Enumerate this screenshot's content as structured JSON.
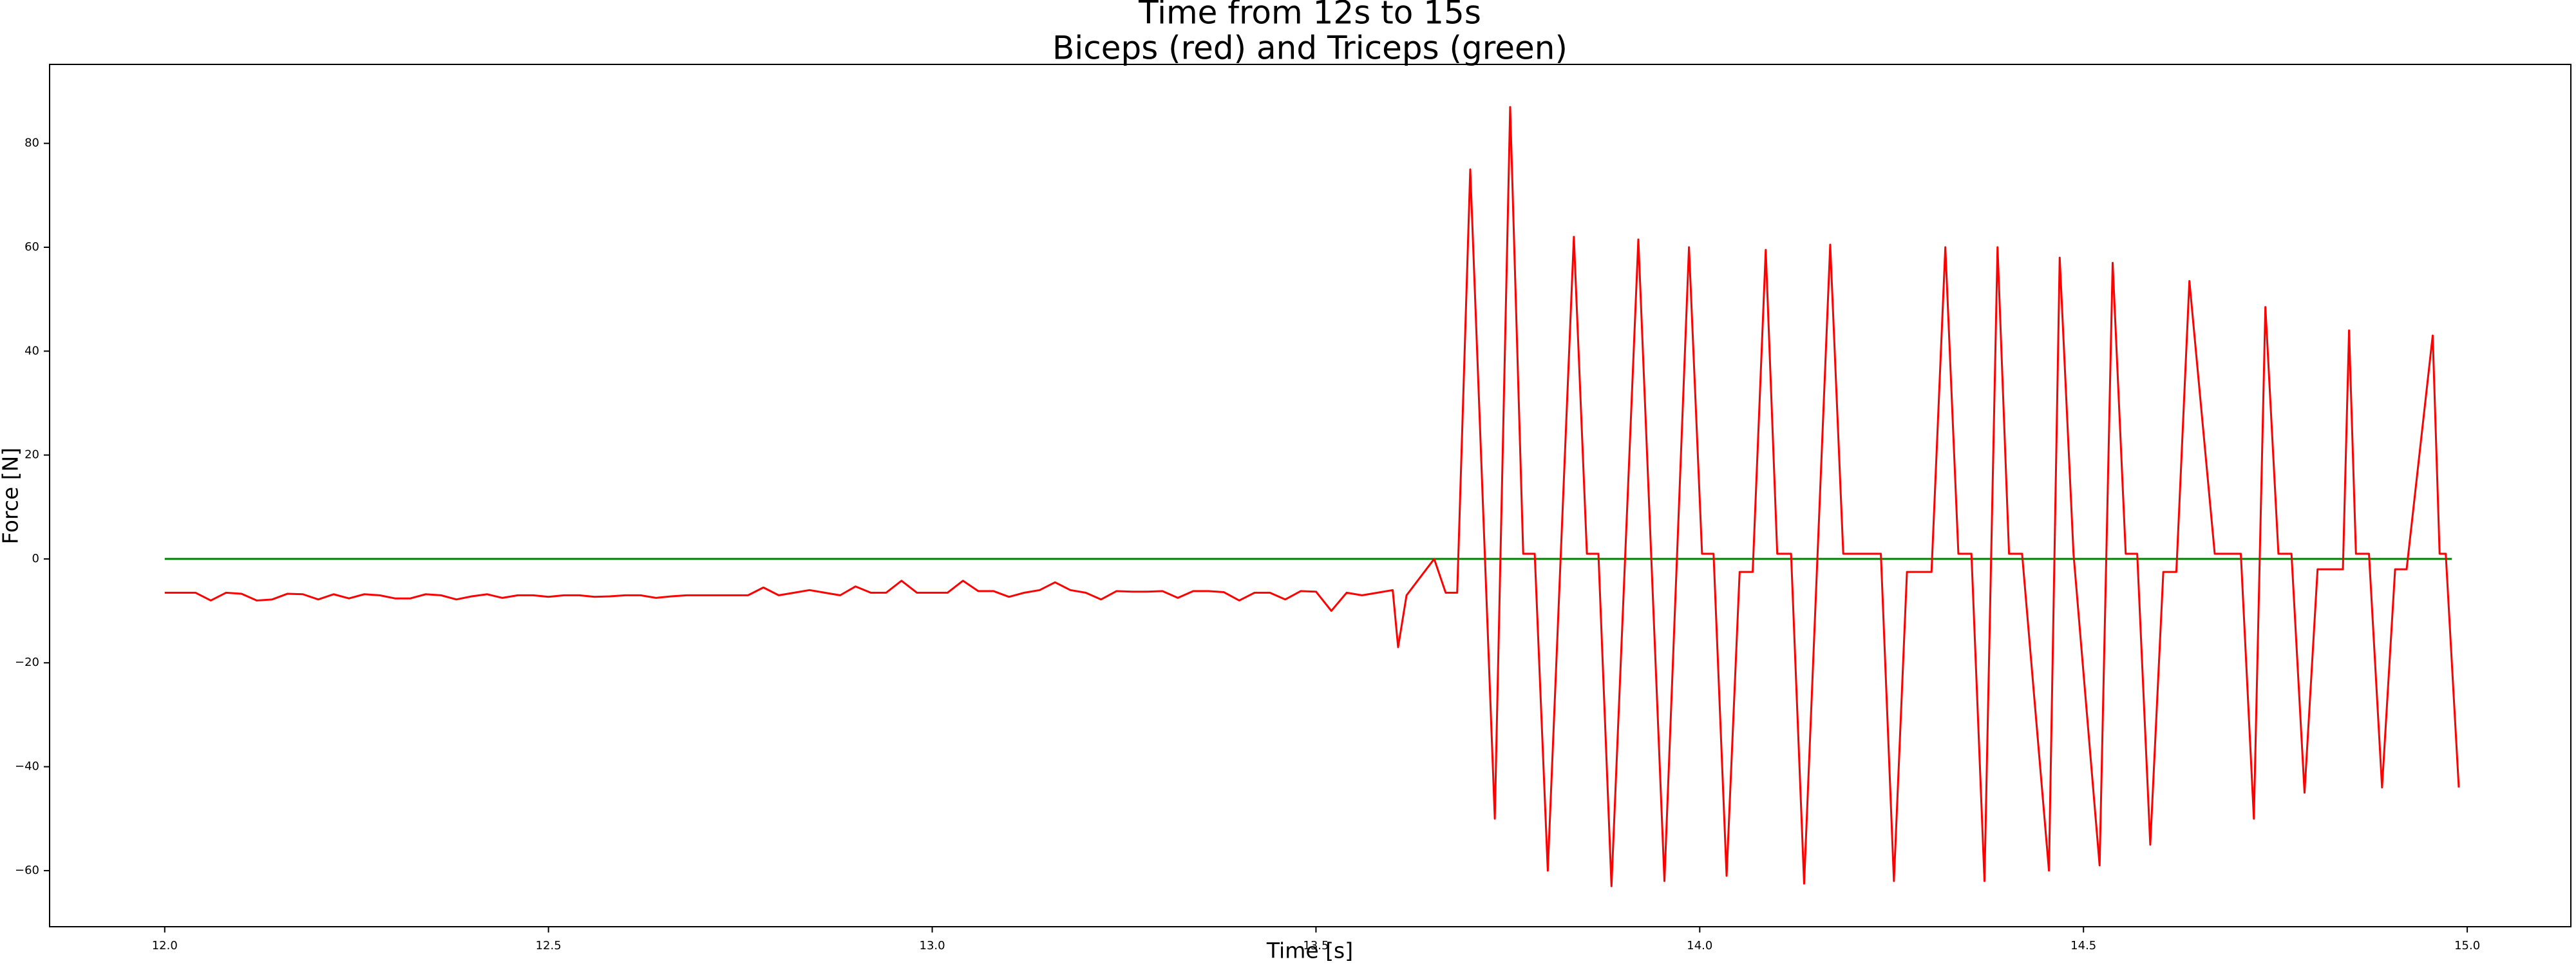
{
  "chart_data": {
    "type": "line",
    "title": "Time from 12s to 15s",
    "subtitle": "Biceps (red) and Triceps (green)",
    "x_label": "Time [s]",
    "y_label": "Force [N]",
    "xlim": [
      11.85,
      15.135
    ],
    "ylim": [
      -70.8,
      95.2
    ],
    "xticks": [
      {
        "value": 12,
        "label": "12.0"
      },
      {
        "value": 12.5,
        "label": "12.5"
      },
      {
        "value": 13,
        "label": "13.0"
      },
      {
        "value": 13.5,
        "label": "13.5"
      },
      {
        "value": 14,
        "label": "14.0"
      },
      {
        "value": 14.5,
        "label": "14.5"
      },
      {
        "value": 15,
        "label": "15.0"
      }
    ],
    "yticks": [
      {
        "value": -60,
        "label": "−60"
      },
      {
        "value": -40,
        "label": "−40"
      },
      {
        "value": -20,
        "label": "−20"
      },
      0,
      20,
      40,
      60,
      80
    ],
    "series": [
      {
        "color": "#008000",
        "x": [
          12.0,
          14.98
        ],
        "values": [
          0,
          0
        ]
      },
      {
        "color": "#ff0000",
        "x": [
          12.0,
          12.02,
          12.04,
          12.06,
          12.08,
          12.1,
          12.12,
          12.14,
          12.16,
          12.18,
          12.2,
          12.22,
          12.24,
          12.26,
          12.28,
          12.3,
          12.32,
          12.34,
          12.36,
          12.38,
          12.4,
          12.42,
          12.44,
          12.46,
          12.48,
          12.5,
          12.52,
          12.54,
          12.56,
          12.58,
          12.6,
          12.62,
          12.64,
          12.66,
          12.68,
          12.7,
          12.72,
          12.74,
          12.76,
          12.78,
          12.8,
          12.82,
          12.84,
          12.86,
          12.88,
          12.9,
          12.92,
          12.94,
          12.96,
          12.98,
          13.0,
          13.02,
          13.04,
          13.06,
          13.08,
          13.1,
          13.12,
          13.14,
          13.16,
          13.18,
          13.2,
          13.22,
          13.24,
          13.26,
          13.28,
          13.3,
          13.32,
          13.34,
          13.36,
          13.38,
          13.4,
          13.42,
          13.44,
          13.46,
          13.48,
          13.5,
          13.52,
          13.54,
          13.56,
          13.58,
          13.6,
          13.607,
          13.618,
          13.654,
          13.669,
          13.684,
          13.701,
          13.733,
          13.753,
          13.77,
          13.785,
          13.802,
          13.836,
          13.853,
          13.868,
          13.885,
          13.92,
          13.954,
          13.986,
          14.003,
          14.018,
          14.035,
          14.052,
          14.069,
          14.086,
          14.101,
          14.119,
          14.136,
          14.17,
          14.187,
          14.236,
          14.253,
          14.27,
          14.302,
          14.32,
          14.337,
          14.354,
          14.371,
          14.388,
          14.403,
          14.42,
          14.455,
          14.469,
          14.487,
          14.521,
          14.538,
          14.555,
          14.57,
          14.587,
          14.604,
          14.621,
          14.638,
          14.671,
          14.705,
          14.722,
          14.737,
          14.754,
          14.771,
          14.788,
          14.805,
          14.838,
          14.846,
          14.855,
          14.872,
          14.889,
          14.906,
          14.921,
          14.955,
          14.964,
          14.972,
          14.989
        ],
        "values": [
          -6.5,
          -6.5,
          -6.5,
          -8,
          -6.5,
          -6.7,
          -8,
          -7.8,
          -6.7,
          -6.8,
          -7.8,
          -6.8,
          -7.6,
          -6.8,
          -7,
          -7.6,
          -7.6,
          -6.8,
          -7,
          -7.8,
          -7.2,
          -6.8,
          -7.5,
          -7,
          -7,
          -7.3,
          -7,
          -7,
          -7.3,
          -7.2,
          -7,
          -7,
          -7.5,
          -7.2,
          -7,
          -7,
          -7,
          -7,
          -7,
          -5.5,
          -7,
          -6.5,
          -6,
          -6.5,
          -7,
          -5.3,
          -6.5,
          -6.5,
          -4.2,
          -6.5,
          -6.5,
          -6.5,
          -4.2,
          -6.2,
          -6.2,
          -7.3,
          -6.5,
          -6,
          -4.5,
          -6,
          -6.5,
          -7.8,
          -6.2,
          -6.3,
          -6.3,
          -6.2,
          -7.5,
          -6.2,
          -6.2,
          -6.4,
          -8,
          -6.5,
          -6.5,
          -7.8,
          -6.2,
          -6.3,
          -10,
          -6.5,
          -7,
          -6.5,
          -6,
          -17,
          -7,
          0,
          -6.5,
          -6.5,
          75,
          -50,
          87,
          1,
          1,
          -60,
          62,
          1,
          1,
          -63,
          61.5,
          -62,
          60,
          1,
          1,
          -61,
          -2.5,
          -2.5,
          59.5,
          1,
          1,
          -62.5,
          60.5,
          1,
          1,
          -62,
          -2.5,
          -2.5,
          60,
          1,
          1,
          -62,
          60,
          1,
          1,
          -60,
          58,
          1,
          -59,
          57,
          1,
          1,
          -55,
          -2.5,
          -2.5,
          53.5,
          1,
          1,
          -50,
          48.5,
          1,
          1,
          -45,
          -2,
          -2,
          44,
          1,
          1,
          -44,
          -2,
          -2,
          43,
          1,
          1,
          -44
        ]
      }
    ]
  }
}
